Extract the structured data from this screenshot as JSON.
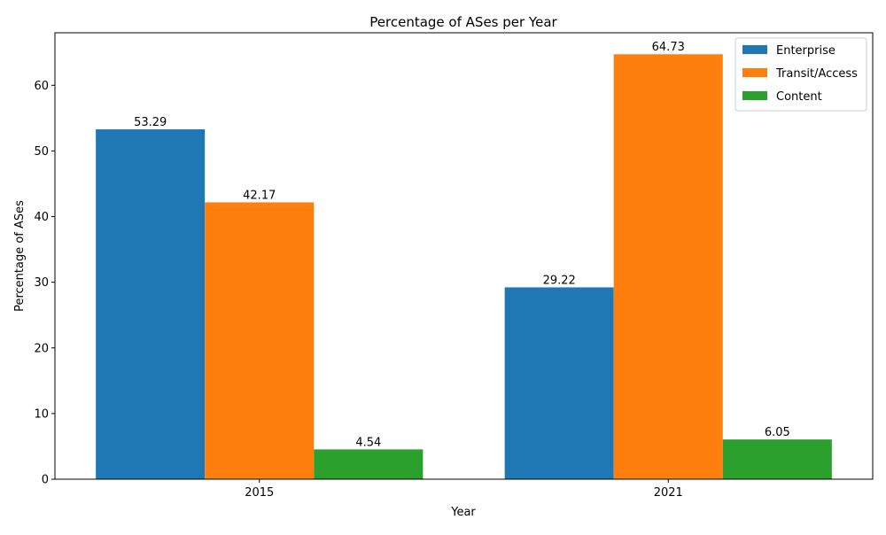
{
  "chart_data": {
    "type": "bar",
    "title": "Percentage of ASes per Year",
    "xlabel": "Year",
    "ylabel": "Percentage of ASes",
    "categories": [
      "2015",
      "2021"
    ],
    "series": [
      {
        "name": "Enterprise",
        "values": [
          53.29,
          29.22
        ],
        "color": "#1f77b4"
      },
      {
        "name": "Transit/Access",
        "values": [
          42.17,
          64.73
        ],
        "color": "#ff7f0e"
      },
      {
        "name": "Content",
        "values": [
          4.54,
          6.05
        ],
        "color": "#2ca02c"
      }
    ],
    "ylim": [
      0,
      68
    ],
    "yticks": [
      0,
      10,
      20,
      30,
      40,
      50,
      60
    ],
    "grid": false,
    "legend_position": "top-right"
  }
}
